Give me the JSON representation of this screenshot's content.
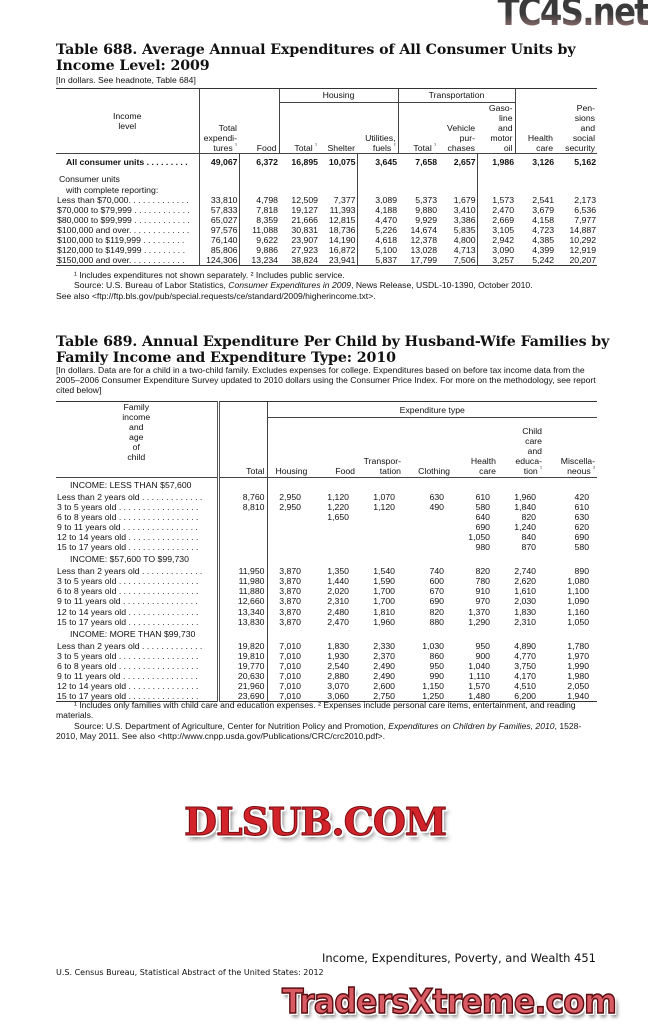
{
  "table688": {
    "title_line1": "Table 688. Average Annual Expenditures of All Consumer Units by",
    "title_line2": "Income Level: 2009",
    "headnote": "[In dollars. See headnote, Table 684]",
    "group_headers": {
      "housing": "Housing",
      "transportation": "Transportation"
    },
    "columns": [
      "Income level",
      "Total expendi-tures ¹",
      "Food",
      "Total ¹",
      "Shelter",
      "Utilities, fuels ²",
      "Total ¹",
      "Vehicle pur-chases",
      "Gaso-line and motor oil",
      "Health care",
      "Pen-sions and social security"
    ],
    "all_units": {
      "label": "All consumer units . . . . . . . . .",
      "values": [
        "49,067",
        "6,372",
        "16,895",
        "10,075",
        "3,645",
        "7,658",
        "2,657",
        "1,986",
        "3,126",
        "5,162"
      ]
    },
    "subhead_1": "Consumer units",
    "subhead_2": "with complete reporting:",
    "rows": [
      {
        "label": "Less than $70,000. . . . . . . . . . . . .",
        "values": [
          "33,810",
          "4,798",
          "12,509",
          "7,377",
          "3,089",
          "5,373",
          "1,679",
          "1,573",
          "2,541",
          "2,173"
        ]
      },
      {
        "label": "$70,000 to $79,999 . . . . . . . . . . . .",
        "values": [
          "57,833",
          "7,818",
          "19,127",
          "11,393",
          "4,188",
          "9,880",
          "3,410",
          "2,470",
          "3,679",
          "6,536"
        ]
      },
      {
        "label": "$80,000 to $99,999 . . . . . . . . . . . .",
        "values": [
          "65,027",
          "8,359",
          "21,666",
          "12,815",
          "4,470",
          "9,929",
          "3,386",
          "2,669",
          "4,158",
          "7,977"
        ]
      },
      {
        "label": "$100,000 and over. . . . . . . . . . . . .",
        "values": [
          "97,576",
          "11,088",
          "30,831",
          "18,736",
          "5,226",
          "14,674",
          "5,835",
          "3,105",
          "4,723",
          "14,887"
        ]
      },
      {
        "label": " $100,000 to $119,999 . . . . . . . . .",
        "values": [
          "76,140",
          "9,622",
          "23,907",
          "14,190",
          "4,618",
          "12,378",
          "4,800",
          "2,942",
          "4,385",
          "10,292"
        ]
      },
      {
        "label": " $120,000 to $149,999 . . . . . . . . .",
        "values": [
          "85,806",
          "9,886",
          "27,923",
          "16,872",
          "5,100",
          "13,028",
          "4,713",
          "3,090",
          "4,399",
          "12,919"
        ]
      },
      {
        "label": " $150,000 and over. . . . . . . . . . . .",
        "values": [
          "124,306",
          "13,234",
          "38,824",
          "23,941",
          "5,837",
          "17,799",
          "7,506",
          "3,257",
          "5,242",
          "20,207"
        ]
      }
    ],
    "footnote": "¹ Includes expenditures not shown separately. ² Includes public service.",
    "source_prefix": "Source: U.S. Bureau of Labor Statistics, ",
    "source_title": "Consumer Expenditures in 2009",
    "source_suffix": ", News Release, USDL-10-1390, October 2010.",
    "see_also": "See also <ftp://ftp.bls.gov/pub/special.requests/ce/standard/2009/higherincome.txt>."
  },
  "table689": {
    "title_line1": "Table 689. Annual Expenditure Per Child by Husband-Wife Families by",
    "title_line2": "Family Income and Expenditure Type: 2010",
    "headnote": "[In dollars. Data are for a child in a two-child family. Excludes expenses for college. Expenditures based on before tax income data from the 2005–2006 Consumer Expenditure Survey updated to 2010 dollars using the Consumer Price Index. For more on the methodology, see report cited below]",
    "group_header": "Expenditure type",
    "columns": [
      "Family income and age of child",
      "Total",
      "Housing",
      "Food",
      "Transpor-tation",
      "Clothing",
      "Health care",
      "Child care and educa-tion ¹",
      "Miscella-neous ²"
    ],
    "sections": [
      {
        "heading": "INCOME: LESS THAN $57,600",
        "rows": [
          {
            "label": "Less than 2 years old . . . . . . . . . . . . .",
            "values": [
              "8,760",
              "2,950",
              "1,120",
              "1,070",
              "630",
              "610",
              "1,960",
              "420"
            ]
          },
          {
            "label": "3 to 5 years old . . . . . . . . . . . . . . . . .",
            "values": [
              "8,810",
              "2,950",
              "1,220",
              "1,120",
              "490",
              "580",
              "1,840",
              "610"
            ]
          },
          {
            "label": "6 to 8 years old . . . . . . . . . . . . . . . . .",
            "values": [
              "",
              "",
              "1,650",
              "",
              "",
              "640",
              "820",
              "630"
            ]
          },
          {
            "label": "9 to 11 years old . . . . . . . . . . . . . . . .",
            "values": [
              "",
              "",
              "",
              "",
              "",
              "690",
              "1,240",
              "620"
            ]
          },
          {
            "label": "12 to 14 years old . . . . . . . . . . . . . . .",
            "values": [
              "",
              "",
              "",
              "",
              "",
              "1,050",
              "840",
              "690"
            ]
          },
          {
            "label": "15 to 17 years old . . . . . . . . . . . . . . .",
            "values": [
              "",
              "",
              "",
              "",
              "",
              "980",
              "870",
              "580"
            ]
          }
        ]
      },
      {
        "heading": "INCOME: $57,600 TO $99,730",
        "rows": [
          {
            "label": "Less than 2 years old . . . . . . . . . . . . .",
            "values": [
              "11,950",
              "3,870",
              "1,350",
              "1,540",
              "740",
              "820",
              "2,740",
              "890"
            ]
          },
          {
            "label": "3 to 5 years old . . . . . . . . . . . . . . . . .",
            "values": [
              "11,980",
              "3,870",
              "1,440",
              "1,590",
              "600",
              "780",
              "2,620",
              "1,080"
            ]
          },
          {
            "label": "6 to 8 years old . . . . . . . . . . . . . . . . .",
            "values": [
              "11,880",
              "3,870",
              "2,020",
              "1,700",
              "670",
              "910",
              "1,610",
              "1,100"
            ]
          },
          {
            "label": "9 to 11 years old . . . . . . . . . . . . . . . .",
            "values": [
              "12,660",
              "3,870",
              "2,310",
              "1,700",
              "690",
              "970",
              "2,030",
              "1,090"
            ]
          },
          {
            "label": "12 to 14 years old . . . . . . . . . . . . . . .",
            "values": [
              "13,340",
              "3,870",
              "2,480",
              "1,810",
              "820",
              "1,370",
              "1,830",
              "1,160"
            ]
          },
          {
            "label": "15 to 17 years old . . . . . . . . . . . . . . .",
            "values": [
              "13,830",
              "3,870",
              "2,470",
              "1,960",
              "880",
              "1,290",
              "2,310",
              "1,050"
            ]
          }
        ]
      },
      {
        "heading": "INCOME: MORE THAN $99,730",
        "rows": [
          {
            "label": "Less than 2 years old . . . . . . . . . . . . .",
            "values": [
              "19,820",
              "7,010",
              "1,830",
              "2,330",
              "1,030",
              "950",
              "4,890",
              "1,780"
            ]
          },
          {
            "label": "3 to 5 years old . . . . . . . . . . . . . . . . .",
            "values": [
              "19,810",
              "7,010",
              "1,930",
              "2,370",
              "860",
              "900",
              "4,770",
              "1,970"
            ]
          },
          {
            "label": "6 to 8 years old . . . . . . . . . . . . . . . . .",
            "values": [
              "19,770",
              "7,010",
              "2,540",
              "2,490",
              "950",
              "1,040",
              "3,750",
              "1,990"
            ]
          },
          {
            "label": "9 to 11 years old . . . . . . . . . . . . . . . .",
            "values": [
              "20,630",
              "7,010",
              "2,880",
              "2,490",
              "990",
              "1,110",
              "4,170",
              "1,980"
            ]
          },
          {
            "label": "12 to 14 years old . . . . . . . . . . . . . . .",
            "values": [
              "21,960",
              "7,010",
              "3,070",
              "2,600",
              "1,150",
              "1,570",
              "4,510",
              "2,050"
            ]
          },
          {
            "label": "15 to 17 years old . . . . . . . . . . . . . . .",
            "values": [
              "23,690",
              "7,010",
              "3,060",
              "2,750",
              "1,250",
              "1,480",
              "6,200",
              "1,940"
            ]
          }
        ]
      }
    ],
    "footnote": "¹ Includes only families with child care and education expenses. ² Expenses include personal care items, entertainment, and reading materials.",
    "source_prefix": "Source: U.S. Department of Agriculture, Center for Nutrition Policy and Promotion, ",
    "source_title": "Expenditures on Children by Families, 2010",
    "source_suffix": ", 1528-2010, May 2011. See also <http://www.cnpp.usda.gov/Publications/CRC/crc2010.pdf>."
  },
  "footer": {
    "running_head": "Income, Expenditures, Poverty, and Wealth  451",
    "publication": "U.S. Census Bureau, Statistical Abstract of the United States: 2012"
  },
  "watermarks": {
    "top": "TC4S.net",
    "middle": "DLSUB.COM",
    "bottom": "TradersXtreme.com",
    "red": "#d2232a"
  }
}
